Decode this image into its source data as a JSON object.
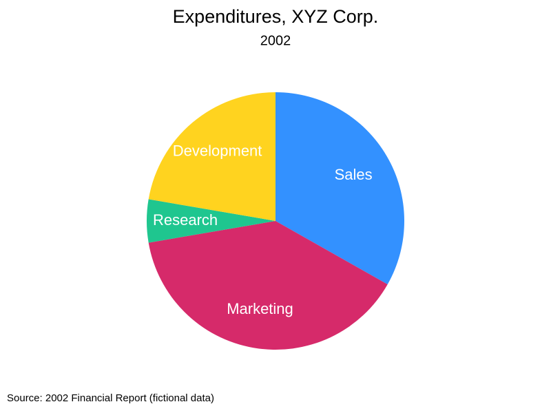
{
  "chart_data": {
    "type": "pie",
    "title": "Expenditures, XYZ Corp.",
    "subtitle": "2002",
    "categories": [
      "Sales",
      "Marketing",
      "Research",
      "Development"
    ],
    "values": [
      33.2,
      39.1,
      5.4,
      22.3
    ],
    "colors": [
      "#3391ff",
      "#d62a6a",
      "#1fc68f",
      "#ffd31f"
    ],
    "source": "Source: 2002 Financial Report (fictional data)"
  }
}
